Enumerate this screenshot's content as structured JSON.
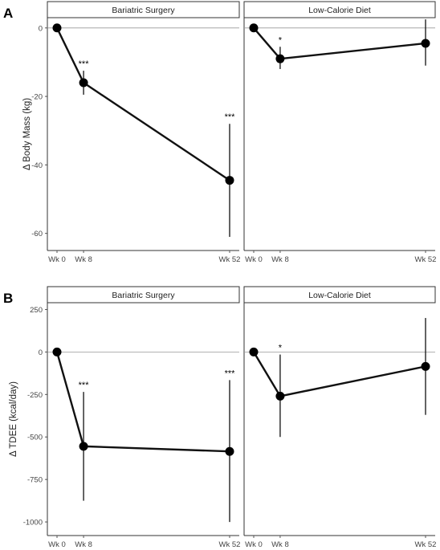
{
  "chart_data": [
    {
      "type": "line",
      "panel_label": "A",
      "ylabel": "Δ Body Mass (kg)",
      "ylim": [
        -65,
        3
      ],
      "yticks": [
        0,
        -20,
        -40,
        -60
      ],
      "ytick_labels": [
        "0",
        "-20",
        "-40",
        "-60"
      ],
      "x": [
        0,
        8,
        52
      ],
      "xtick_labels": [
        "Wk 0",
        "Wk 8",
        "Wk 52"
      ],
      "reference_line": 0,
      "grid": false,
      "facets": [
        {
          "title": "Bariatric Surgery",
          "values": [
            0,
            -16,
            -44.5
          ],
          "error_low": [
            0,
            -19.5,
            -61
          ],
          "error_high": [
            0,
            -12.5,
            -28
          ],
          "significance": [
            "",
            "***",
            "***"
          ]
        },
        {
          "title": "Low-Calorie Diet",
          "values": [
            0,
            -9,
            -4.5
          ],
          "error_low": [
            0,
            -12,
            -11
          ],
          "error_high": [
            0,
            -5.5,
            2.5
          ],
          "significance": [
            "",
            "*",
            ""
          ]
        }
      ]
    },
    {
      "type": "line",
      "panel_label": "B",
      "ylabel": "Δ TDEE (kcal/day)",
      "ylim": [
        -1080,
        290
      ],
      "yticks": [
        250,
        0,
        -250,
        -500,
        -750,
        -1000
      ],
      "ytick_labels": [
        "250",
        "0",
        "-250",
        "-500",
        "-750",
        "-1000"
      ],
      "x": [
        0,
        8,
        52
      ],
      "xtick_labels": [
        "Wk 0",
        "Wk 8",
        "Wk 52"
      ],
      "reference_line": 0,
      "grid": false,
      "facets": [
        {
          "title": "Bariatric Surgery",
          "values": [
            0,
            -555,
            -585
          ],
          "error_low": [
            0,
            -875,
            -1000
          ],
          "error_high": [
            0,
            -235,
            -165
          ],
          "significance": [
            "",
            "***",
            "***"
          ]
        },
        {
          "title": "Low-Calorie Diet",
          "values": [
            0,
            -260,
            -85
          ],
          "error_low": [
            0,
            -500,
            -370
          ],
          "error_high": [
            0,
            -15,
            200
          ],
          "significance": [
            "",
            "*",
            ""
          ]
        }
      ]
    }
  ]
}
